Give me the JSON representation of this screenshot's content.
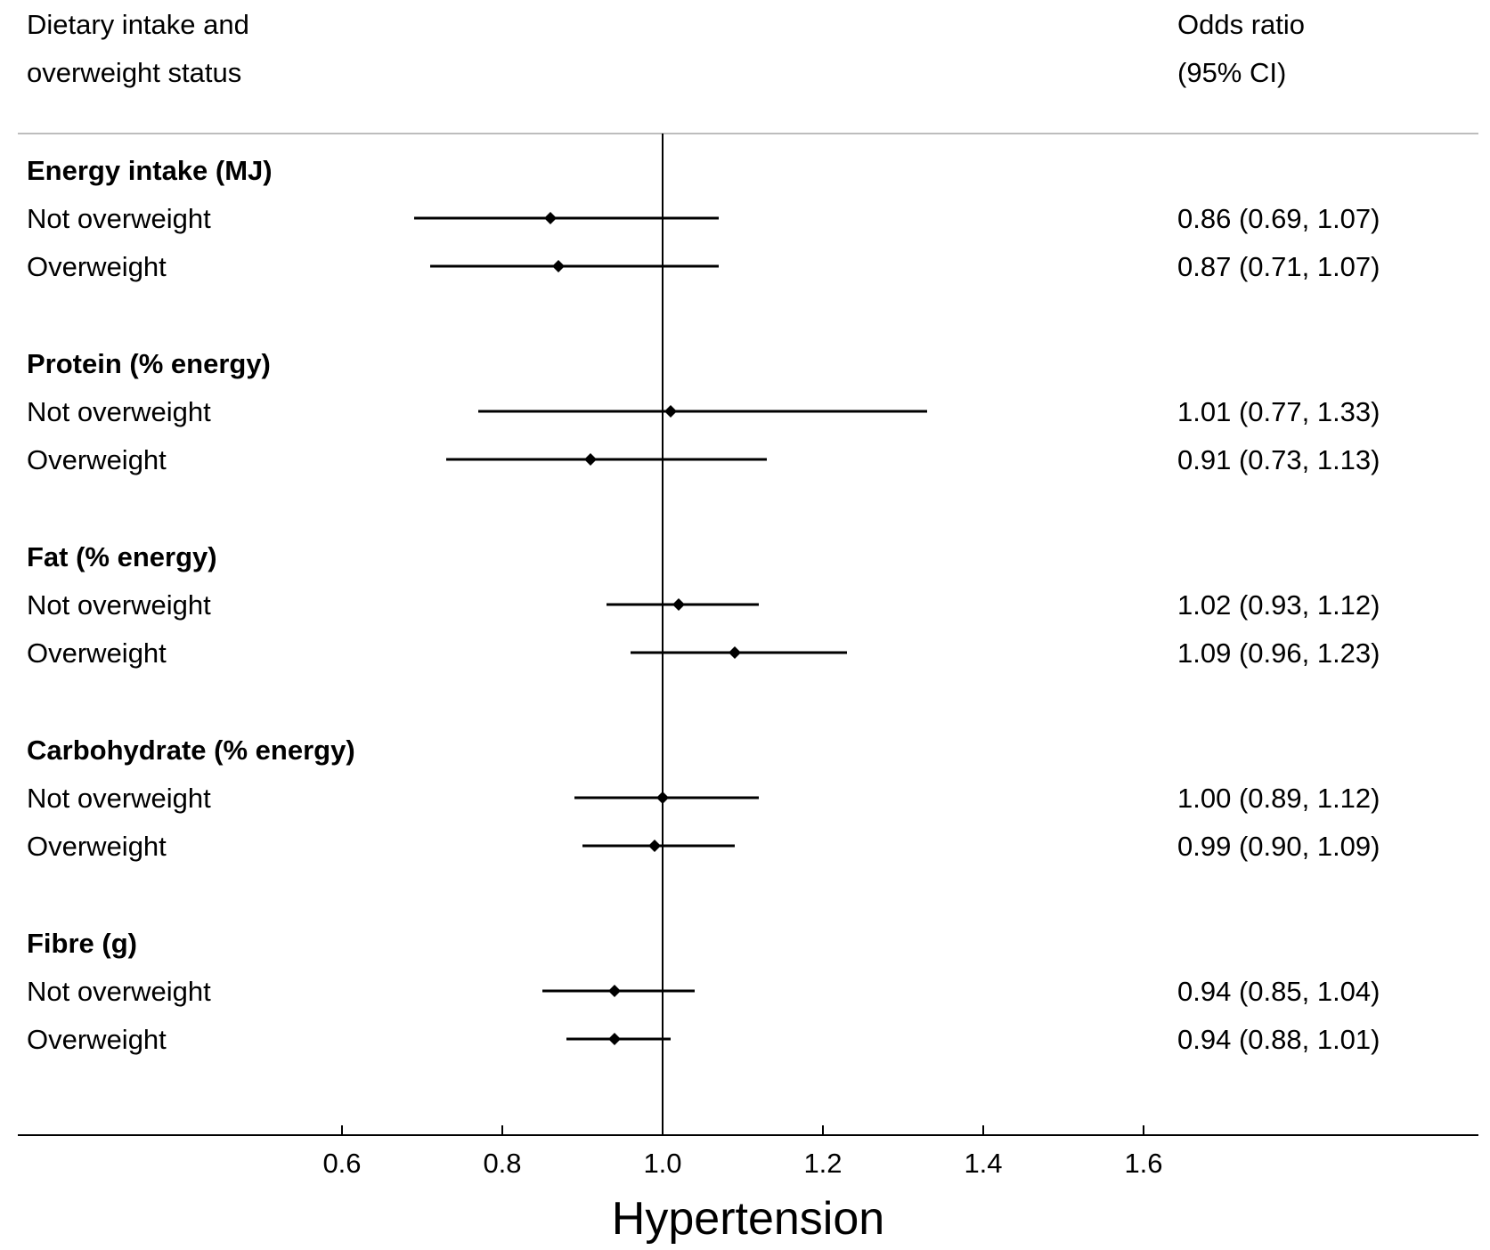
{
  "header": {
    "left_line1": "Dietary intake and",
    "left_line2": "overweight status",
    "right_line1": "Odds ratio",
    "right_line2": "(95% CI)"
  },
  "colors": {
    "marks": "#000000",
    "top_rule": "#bdbdbd",
    "background": "#ffffff"
  },
  "chart_data": {
    "type": "forest",
    "title": "",
    "xlabel": "Hypertension",
    "ylabel": "",
    "reference_line": 1.0,
    "xlim": [
      0.2,
      2.03
    ],
    "xticks": [
      0.6,
      0.8,
      1.0,
      1.2,
      1.4,
      1.6
    ],
    "xtick_labels": [
      "0.6",
      "0.8",
      "1.0",
      "1.2",
      "1.4",
      "1.6"
    ],
    "groups": [
      {
        "label": "Energy intake (MJ)",
        "rows": [
          {
            "label": "Not overweight",
            "or": 0.86,
            "lo": 0.69,
            "hi": 1.07,
            "text": "0.86 (0.69, 1.07)"
          },
          {
            "label": "Overweight",
            "or": 0.87,
            "lo": 0.71,
            "hi": 1.07,
            "text": "0.87 (0.71, 1.07)"
          }
        ]
      },
      {
        "label": "Protein (% energy)",
        "rows": [
          {
            "label": "Not overweight",
            "or": 1.01,
            "lo": 0.77,
            "hi": 1.33,
            "text": "1.01 (0.77, 1.33)"
          },
          {
            "label": "Overweight",
            "or": 0.91,
            "lo": 0.73,
            "hi": 1.13,
            "text": "0.91 (0.73, 1.13)"
          }
        ]
      },
      {
        "label": "Fat (% energy)",
        "rows": [
          {
            "label": "Not overweight",
            "or": 1.02,
            "lo": 0.93,
            "hi": 1.12,
            "text": "1.02 (0.93, 1.12)"
          },
          {
            "label": "Overweight",
            "or": 1.09,
            "lo": 0.96,
            "hi": 1.23,
            "text": "1.09 (0.96, 1.23)"
          }
        ]
      },
      {
        "label": "Carbohydrate (% energy)",
        "rows": [
          {
            "label": "Not overweight",
            "or": 1.0,
            "lo": 0.89,
            "hi": 1.12,
            "text": "1.00 (0.89, 1.12)"
          },
          {
            "label": "Overweight",
            "or": 0.99,
            "lo": 0.9,
            "hi": 1.09,
            "text": "0.99 (0.90, 1.09)"
          }
        ]
      },
      {
        "label": "Fibre (g)",
        "rows": [
          {
            "label": "Not overweight",
            "or": 0.94,
            "lo": 0.85,
            "hi": 1.04,
            "text": "0.94 (0.85, 1.04)"
          },
          {
            "label": "Overweight",
            "or": 0.94,
            "lo": 0.88,
            "hi": 1.01,
            "text": "0.94 (0.88, 1.01)"
          }
        ]
      }
    ]
  }
}
